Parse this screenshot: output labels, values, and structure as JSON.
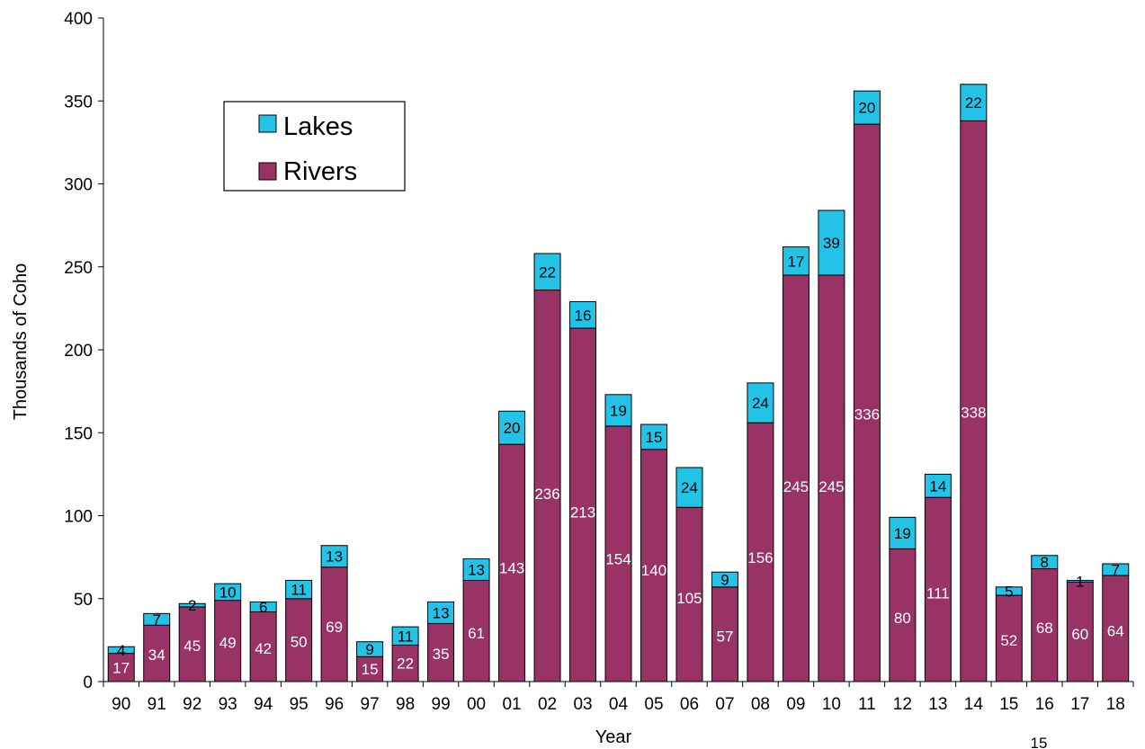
{
  "chart_data": {
    "type": "bar",
    "stacked": true,
    "categories": [
      "90",
      "91",
      "92",
      "93",
      "94",
      "95",
      "96",
      "97",
      "98",
      "99",
      "00",
      "01",
      "02",
      "03",
      "04",
      "05",
      "06",
      "07",
      "08",
      "09",
      "10",
      "11",
      "12",
      "13",
      "14",
      "15",
      "16",
      "17",
      "18"
    ],
    "series": [
      {
        "name": "Rivers",
        "color": "#993366",
        "values": [
          17,
          34,
          45,
          49,
          42,
          50,
          69,
          15,
          22,
          35,
          61,
          143,
          236,
          213,
          154,
          140,
          105,
          57,
          156,
          245,
          245,
          336,
          80,
          111,
          338,
          52,
          68,
          60,
          64
        ]
      },
      {
        "name": "Lakes",
        "color": "#22c3e6",
        "values": [
          4,
          7,
          2,
          10,
          6,
          11,
          13,
          9,
          11,
          13,
          13,
          20,
          22,
          16,
          19,
          15,
          24,
          9,
          24,
          17,
          39,
          20,
          19,
          14,
          22,
          5,
          8,
          1,
          7
        ]
      }
    ],
    "xlabel": "Year",
    "ylabel": "Thousands of Coho",
    "ylim": [
      0,
      400
    ],
    "yticks": [
      0,
      50,
      100,
      150,
      200,
      250,
      300,
      350,
      400
    ],
    "grid": false,
    "legend_placement": "top-left",
    "legend_order": [
      "Lakes",
      "Rivers"
    ]
  },
  "page_number": "15"
}
